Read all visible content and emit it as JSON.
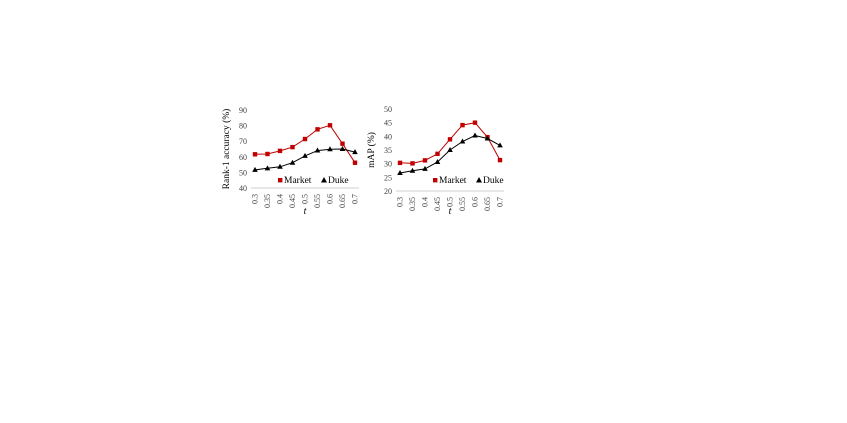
{
  "chart_data": [
    {
      "type": "line",
      "title": "",
      "xlabel": "t",
      "ylabel": "Rank-1 accuracy (%)",
      "categories": [
        "0.3",
        "0.35",
        "0.4",
        "0.45",
        "0.5",
        "0.55",
        "0.6",
        "0.65",
        "0.7"
      ],
      "ylim": [
        40,
        90
      ],
      "yticks": [
        "40",
        "50",
        "60",
        "70",
        "80",
        "90"
      ],
      "grid": false,
      "legend_position": "bottom-right",
      "series": [
        {
          "name": "Market",
          "color": "#c00000",
          "marker": "square",
          "values": [
            61.6,
            61.8,
            63.8,
            66.2,
            71.4,
            77.6,
            80.2,
            68.4,
            56.2
          ]
        },
        {
          "name": "Duke",
          "color": "#000000",
          "marker": "triangle",
          "values": [
            51.6,
            52.6,
            53.6,
            56.2,
            60.6,
            64.0,
            64.8,
            65.0,
            63.0
          ]
        }
      ]
    },
    {
      "type": "line",
      "title": "",
      "xlabel": "t",
      "ylabel": "mAP (%)",
      "categories": [
        "0.3",
        "0.35",
        "0.4",
        "0.45",
        "0.5",
        "0.55",
        "0.6",
        "0.65",
        "0.7"
      ],
      "ylim": [
        20,
        50
      ],
      "yticks": [
        "20",
        "25",
        "30",
        "35",
        "40",
        "45",
        "50"
      ],
      "grid": false,
      "legend_position": "bottom-right",
      "series": [
        {
          "name": "Market",
          "color": "#c00000",
          "marker": "square",
          "values": [
            30.3,
            30.1,
            31.2,
            33.6,
            38.9,
            44.1,
            45.0,
            39.7,
            31.3
          ]
        },
        {
          "name": "Duke",
          "color": "#000000",
          "marker": "triangle",
          "values": [
            26.6,
            27.4,
            28.1,
            30.6,
            35.0,
            38.1,
            40.3,
            39.2,
            36.7
          ]
        }
      ]
    }
  ]
}
